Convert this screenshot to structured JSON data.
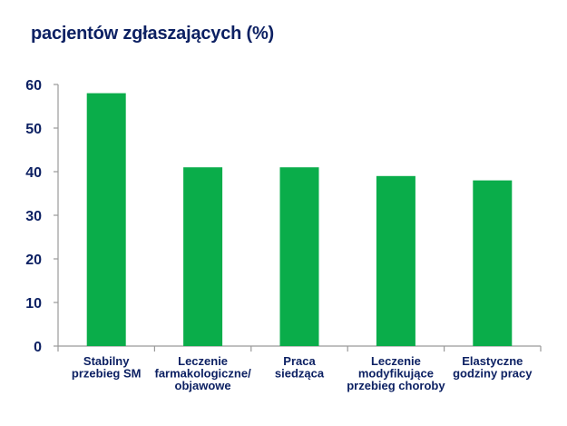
{
  "chart_data": {
    "type": "bar",
    "title": "pacjentów zgłaszających (%)",
    "categories": [
      [
        "Stabilny",
        "przebieg SM"
      ],
      [
        "Leczenie",
        "farmakologiczne/",
        "objawowe"
      ],
      [
        "Praca",
        "siedząca"
      ],
      [
        "Leczenie",
        "modyfikujące",
        "przebieg choroby"
      ],
      [
        "Elastyczne",
        "godziny pracy"
      ]
    ],
    "values": [
      58,
      41,
      41,
      39,
      38
    ],
    "ylim": [
      0,
      60
    ],
    "yticks": [
      "0",
      "10",
      "20",
      "30",
      "40",
      "50",
      "60"
    ],
    "grid": false,
    "bar_color": "#0aad4a",
    "axis_color": "#9a9a9a",
    "text_color": "#0d2163"
  }
}
